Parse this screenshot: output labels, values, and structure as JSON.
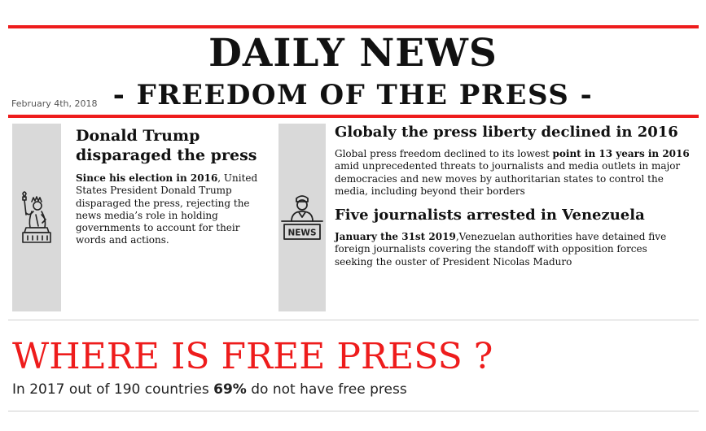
{
  "masthead": {
    "title": "DAILY NEWS",
    "subtitle": "- FREEDOM OF THE PRESS -",
    "date": "February 4th, 2018"
  },
  "colors": {
    "accent_red": "#ee1c1c",
    "icon_bar_gray": "#d9d9d9",
    "text": "#111111"
  },
  "articles": [
    {
      "icon": "statue-of-liberty-icon",
      "headline_line1": "Donald Trump",
      "headline_line2": "disparaged the press",
      "body_bold": "Since his election in 2016",
      "body_l1_rest": ", United",
      "body_l2": "States President Donald Trump",
      "body_l3": "disparaged the press, rejecting the",
      "body_l4": "news media’s role in holding",
      "body_l5": "governments to account for their",
      "body_l6": "words and actions."
    },
    {
      "icon": "news-anchor-icon",
      "headline": "Globaly the press liberty declined in 2016",
      "body_l1_a": "Global press freedom declined to its lowest ",
      "body_l1_bold": "point in 13 years in 2016",
      "body_l2": "amid unprecedented threats to journalists and media outlets in major",
      "body_l3": "democracies and new moves by authoritarian states to control the",
      "body_l4": "media, including beyond their borders"
    },
    {
      "headline": "Five journalists arrested in Venezuela",
      "body_bold": "January the 31st 2019",
      "body_l1_rest": ",Venezuelan authorities have detained five",
      "body_l2": "foreign journalists covering the standoff with opposition forces",
      "body_l3": "seeking the ouster of President Nicolas Maduro"
    }
  ],
  "feature": {
    "heading": "WHERE IS FREE PRESS ?",
    "stat_a": "In 2017 out of 190 countries ",
    "stat_bold": "69%",
    "stat_b": " do not have free press"
  },
  "icons": {
    "news_sign_text": "NEWS"
  }
}
